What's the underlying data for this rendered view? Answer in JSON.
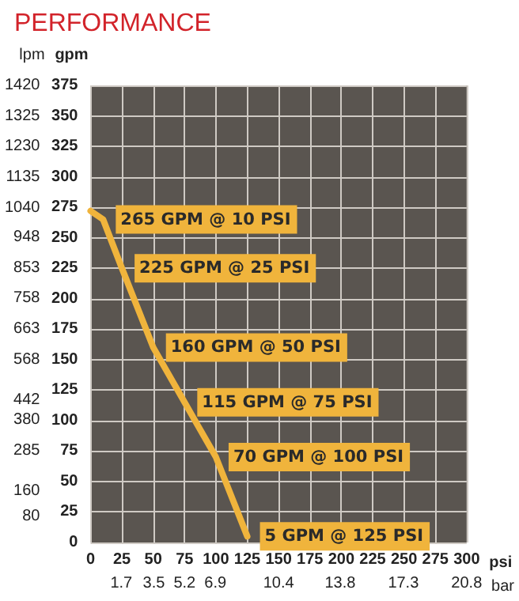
{
  "chart_data": {
    "type": "line",
    "title": "PERFORMANCE",
    "xlabel": "psi",
    "x2label": "bar",
    "ylabel": "gpm",
    "y2label": "lpm",
    "x": [
      0,
      10,
      25,
      50,
      75,
      100,
      125
    ],
    "series": [
      {
        "color": "#f0b43c",
        "values": [
          272,
          265,
          225,
          160,
          115,
          70,
          5
        ]
      }
    ],
    "xlim": [
      0,
      300
    ],
    "xticks": [
      0,
      25,
      50,
      75,
      100,
      125,
      150,
      175,
      200,
      225,
      250,
      275,
      300
    ],
    "x2lim": [
      0,
      20.8
    ],
    "x2ticks": [
      1.7,
      3.5,
      5.2,
      6.9,
      10.4,
      13.8,
      17.3,
      20.8
    ],
    "ylim": [
      0,
      375
    ],
    "yticks": [
      0,
      25,
      50,
      75,
      100,
      125,
      150,
      175,
      200,
      225,
      250,
      275,
      300,
      325,
      350,
      375
    ],
    "y2lim": [
      0,
      1420
    ],
    "y2ticks": [
      80,
      160,
      285,
      380,
      442,
      568,
      663,
      758,
      853,
      948,
      1040,
      1135,
      1230,
      1325,
      1420
    ],
    "annotations": [
      {
        "text": "265 GPM @ 10 PSI",
        "x": 10,
        "y": 265
      },
      {
        "text": "225 GPM @ 25 PSI",
        "x": 25,
        "y": 225
      },
      {
        "text": "160 GPM @ 50 PSI",
        "x": 50,
        "y": 160
      },
      {
        "text": "115 GPM @ 75 PSI",
        "x": 75,
        "y": 115
      },
      {
        "text": "70 GPM @ 100 PSI",
        "x": 100,
        "y": 70
      },
      {
        "text": "5 GPM @ 125 PSI",
        "x": 125,
        "y": 5
      }
    ],
    "grid": true,
    "marker": "none",
    "line_style": "solid"
  }
}
